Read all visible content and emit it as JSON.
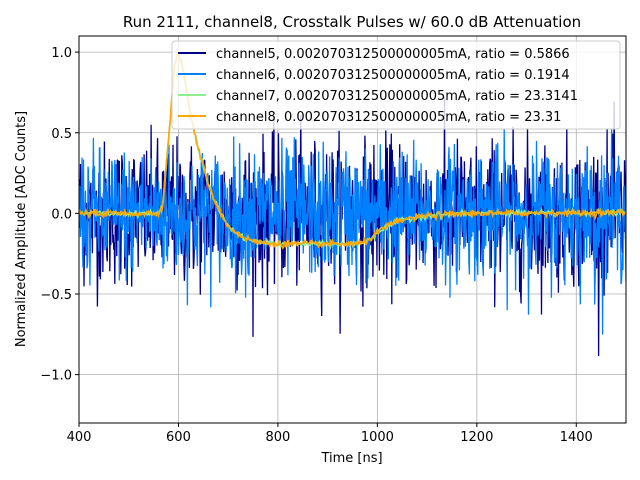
{
  "chart_data": {
    "type": "line",
    "title": "Run 2111, channel8, Crosstalk Pulses w/ 60.0 dB Attenuation",
    "xlabel": "Time [ns]",
    "ylabel": "Normalized Amplitude [ADC Counts]",
    "xlim": [
      400,
      1500
    ],
    "ylim": [
      -1.3,
      1.1
    ],
    "xticks": [
      400,
      600,
      800,
      1000,
      1200,
      1400
    ],
    "xtick_labels": [
      "400",
      "600",
      "800",
      "1000",
      "1200",
      "1400"
    ],
    "yticks": [
      -1.0,
      -0.5,
      0.0,
      0.5,
      1.0
    ],
    "ytick_labels": [
      "−1.0",
      "−0.5",
      "0.0",
      "0.5",
      "1.0"
    ],
    "grid": true,
    "legend_position": "top-right",
    "series": [
      {
        "name": "channel5, 0.002070312500000005mA, ratio = 0.5866",
        "color": "#00008b",
        "kind": "noise",
        "noise_sigma": 0.22,
        "envelope": [
          [
            400,
            0.0
          ],
          [
            1500,
            0.0
          ]
        ]
      },
      {
        "name": "channel6, 0.002070312500000005mA, ratio = 0.1914",
        "color": "#0080ff",
        "kind": "noise",
        "noise_sigma": 0.2,
        "envelope": [
          [
            400,
            0.0
          ],
          [
            1500,
            0.0
          ]
        ]
      },
      {
        "name": "channel7, 0.002070312500000005mA, ratio = 23.3141",
        "color": "#90ee90",
        "kind": "pulse",
        "noise_sigma": 0.008,
        "points": [
          [
            400,
            0.0
          ],
          [
            560,
            0.0
          ],
          [
            568,
            0.05
          ],
          [
            580,
            0.45
          ],
          [
            592,
            0.92
          ],
          [
            600,
            1.0
          ],
          [
            610,
            0.88
          ],
          [
            625,
            0.6
          ],
          [
            640,
            0.4
          ],
          [
            660,
            0.18
          ],
          [
            680,
            0.03
          ],
          [
            700,
            -0.08
          ],
          [
            730,
            -0.15
          ],
          [
            760,
            -0.18
          ],
          [
            800,
            -0.19
          ],
          [
            900,
            -0.19
          ],
          [
            960,
            -0.19
          ],
          [
            980,
            -0.17
          ],
          [
            1000,
            -0.12
          ],
          [
            1020,
            -0.08
          ],
          [
            1050,
            -0.04
          ],
          [
            1100,
            -0.015
          ],
          [
            1150,
            -0.005
          ],
          [
            1200,
            0.0
          ],
          [
            1500,
            0.005
          ]
        ]
      },
      {
        "name": "channel8, 0.002070312500000005mA, ratio = 23.31",
        "color": "#ffa500",
        "kind": "pulse",
        "noise_sigma": 0.01,
        "points": [
          [
            400,
            0.0
          ],
          [
            560,
            0.0
          ],
          [
            568,
            0.05
          ],
          [
            580,
            0.45
          ],
          [
            592,
            0.92
          ],
          [
            600,
            1.0
          ],
          [
            610,
            0.88
          ],
          [
            625,
            0.6
          ],
          [
            640,
            0.4
          ],
          [
            660,
            0.18
          ],
          [
            680,
            0.03
          ],
          [
            700,
            -0.08
          ],
          [
            730,
            -0.15
          ],
          [
            760,
            -0.18
          ],
          [
            800,
            -0.19
          ],
          [
            900,
            -0.19
          ],
          [
            960,
            -0.19
          ],
          [
            980,
            -0.17
          ],
          [
            1000,
            -0.12
          ],
          [
            1020,
            -0.08
          ],
          [
            1050,
            -0.04
          ],
          [
            1100,
            -0.015
          ],
          [
            1150,
            -0.005
          ],
          [
            1200,
            0.0
          ],
          [
            1500,
            0.005
          ]
        ]
      }
    ]
  }
}
